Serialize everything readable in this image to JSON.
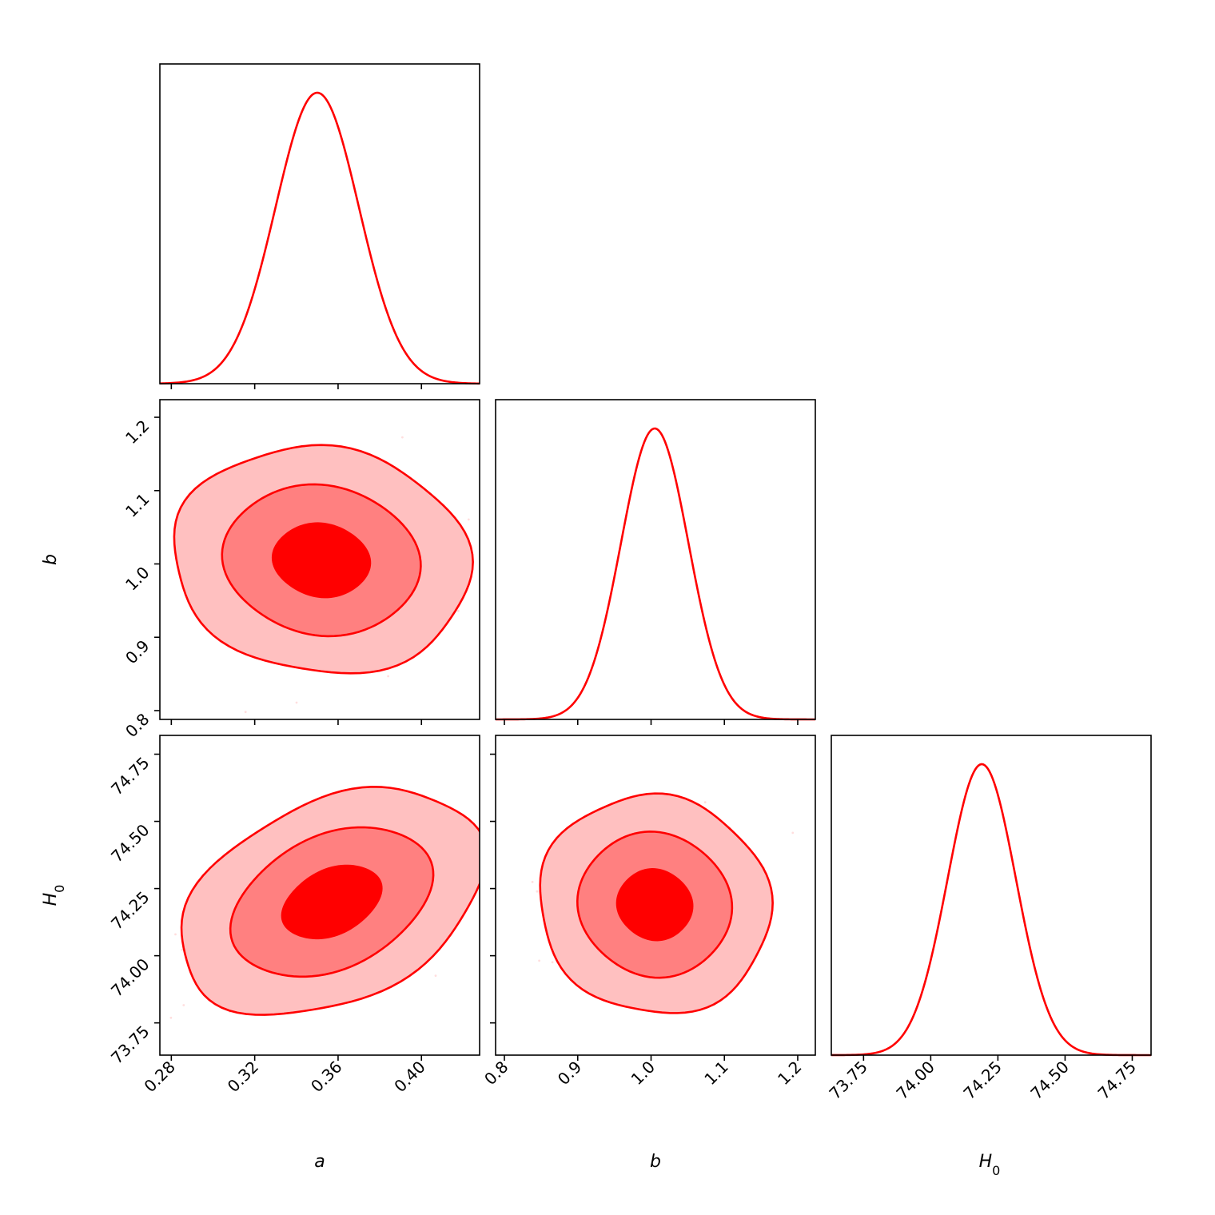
{
  "chart_data": {
    "type": "corner",
    "parameters": [
      {
        "label": "a",
        "sub": "",
        "range": [
          0.2745,
          0.4279
        ],
        "ticks": [
          0.28,
          0.32,
          0.36,
          0.4
        ],
        "tick_labels": [
          "0.28",
          "0.32",
          "0.36",
          "0.40"
        ]
      },
      {
        "label": "b",
        "sub": "",
        "range": [
          0.788,
          1.224
        ],
        "ticks": [
          0.8,
          0.9,
          1.0,
          1.1,
          1.2
        ],
        "tick_labels": [
          "0.8",
          "0.9",
          "1.0",
          "1.1",
          "1.2"
        ]
      },
      {
        "label": "H",
        "sub": "0",
        "range": [
          73.63,
          74.82
        ],
        "ticks": [
          73.75,
          74.0,
          74.25,
          74.5,
          74.75
        ],
        "tick_labels": [
          "73.75",
          "74.00",
          "74.25",
          "74.50",
          "74.75"
        ]
      }
    ],
    "marginals": [
      {
        "param": "a",
        "mean": 0.35,
        "sigma": 0.02
      },
      {
        "param": "b",
        "mean": 1.005,
        "sigma": 0.046
      },
      {
        "param": "H_0",
        "mean": 74.19,
        "sigma": 0.127
      }
    ],
    "joint": [
      {
        "x": "a",
        "y": "b",
        "mean": [
          0.352,
          1.005
        ],
        "sigma": [
          0.0235,
          0.051
        ],
        "rho": -0.08
      },
      {
        "x": "a",
        "y": "H_0",
        "mean": [
          0.357,
          74.2
        ],
        "sigma": [
          0.024,
          0.139
        ],
        "rho": 0.35
      },
      {
        "x": "b",
        "y": "H_0",
        "mean": [
          1.005,
          74.19
        ],
        "sigma": [
          0.052,
          0.134
        ],
        "rho": -0.05
      }
    ],
    "contour_levels_sigma": [
      1,
      2,
      3
    ],
    "colors": {
      "line": "#ff0000",
      "fill_inner": "#ff0000",
      "fill_mid": "#ff8080",
      "fill_outer": "#ffc0c0",
      "samples": "#ff0000"
    },
    "grid": false,
    "legend": "none"
  }
}
